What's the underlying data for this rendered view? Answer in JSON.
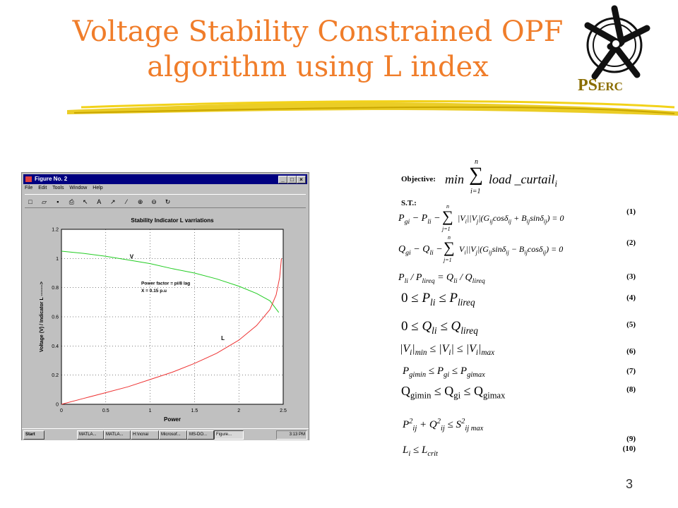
{
  "slide": {
    "title_line1": "Voltage Stability Constrained OPF",
    "title_line2": "algorithm using L index",
    "logo_text_ps": "PS",
    "logo_text_erc": "ERC",
    "page_number": "3",
    "colors": {
      "title": "#f07d2a",
      "accent_stroke": "#e8c400",
      "logo": "#8a6d00"
    }
  },
  "matlab": {
    "window_title": "Figure No. 2",
    "menu": [
      "File",
      "Edit",
      "Tools",
      "Window",
      "Help"
    ],
    "toolbar_icons": [
      "new-icon",
      "open-icon",
      "save-icon",
      "print-icon",
      "arrow-icon",
      "text-icon",
      "line-icon",
      "select-icon",
      "zoom-in-icon",
      "zoom-out-icon",
      "rotate-icon"
    ],
    "toolbar_glyphs": [
      "□",
      "▱",
      "▪",
      "⎙",
      "↖",
      "A",
      "↗",
      "⁄",
      "⊕",
      "⊖",
      "↻"
    ],
    "taskbar": {
      "start": "Start",
      "tasks": [
        "MATLA...",
        "MATLA...",
        "H:\\ncnai",
        "Microsof...",
        "MS-DO...",
        "Figure..."
      ],
      "clock": "3:13 PM"
    },
    "chart_data": {
      "type": "line",
      "title": "Stability Indicator L  varriations",
      "xlabel": "Power",
      "ylabel": "Voltage (V)  / Indicator L ------->",
      "xlim": [
        0,
        2.5
      ],
      "ylim": [
        0,
        1.2
      ],
      "xticks": [
        "0",
        "0.5",
        "1",
        "1.5",
        "2",
        "2.5"
      ],
      "yticks": [
        "0",
        "0.2",
        "0.4",
        "0.6",
        "0.8",
        "1",
        "1.2"
      ],
      "grid": true,
      "annotations": [
        "Power factor = pi/8 lag",
        "X = 0.15 p.u"
      ],
      "series": [
        {
          "name": "V",
          "color": "#22cc22",
          "x": [
            0,
            0.25,
            0.5,
            0.75,
            1.0,
            1.25,
            1.5,
            1.75,
            2.0,
            2.2,
            2.35,
            2.45
          ],
          "y": [
            1.05,
            1.035,
            1.015,
            0.99,
            0.965,
            0.93,
            0.9,
            0.86,
            0.81,
            0.76,
            0.71,
            0.63
          ]
        },
        {
          "name": "L",
          "color": "#ee3333",
          "x": [
            0,
            0.25,
            0.5,
            0.75,
            1.0,
            1.25,
            1.5,
            1.75,
            2.0,
            2.2,
            2.35,
            2.42,
            2.46,
            2.48
          ],
          "y": [
            0,
            0.04,
            0.08,
            0.12,
            0.17,
            0.22,
            0.28,
            0.35,
            0.44,
            0.54,
            0.65,
            0.75,
            0.87,
            1.0
          ]
        }
      ],
      "series_labels": [
        "V",
        "L"
      ]
    }
  },
  "equations": {
    "objective_label": "Objective:",
    "st_label": "S.T.:",
    "numbers": [
      "(1)",
      "(2)",
      "(3)",
      "(4)",
      "(5)",
      "(6)",
      "(7)",
      "(8)",
      "(9)",
      "(10)"
    ]
  }
}
